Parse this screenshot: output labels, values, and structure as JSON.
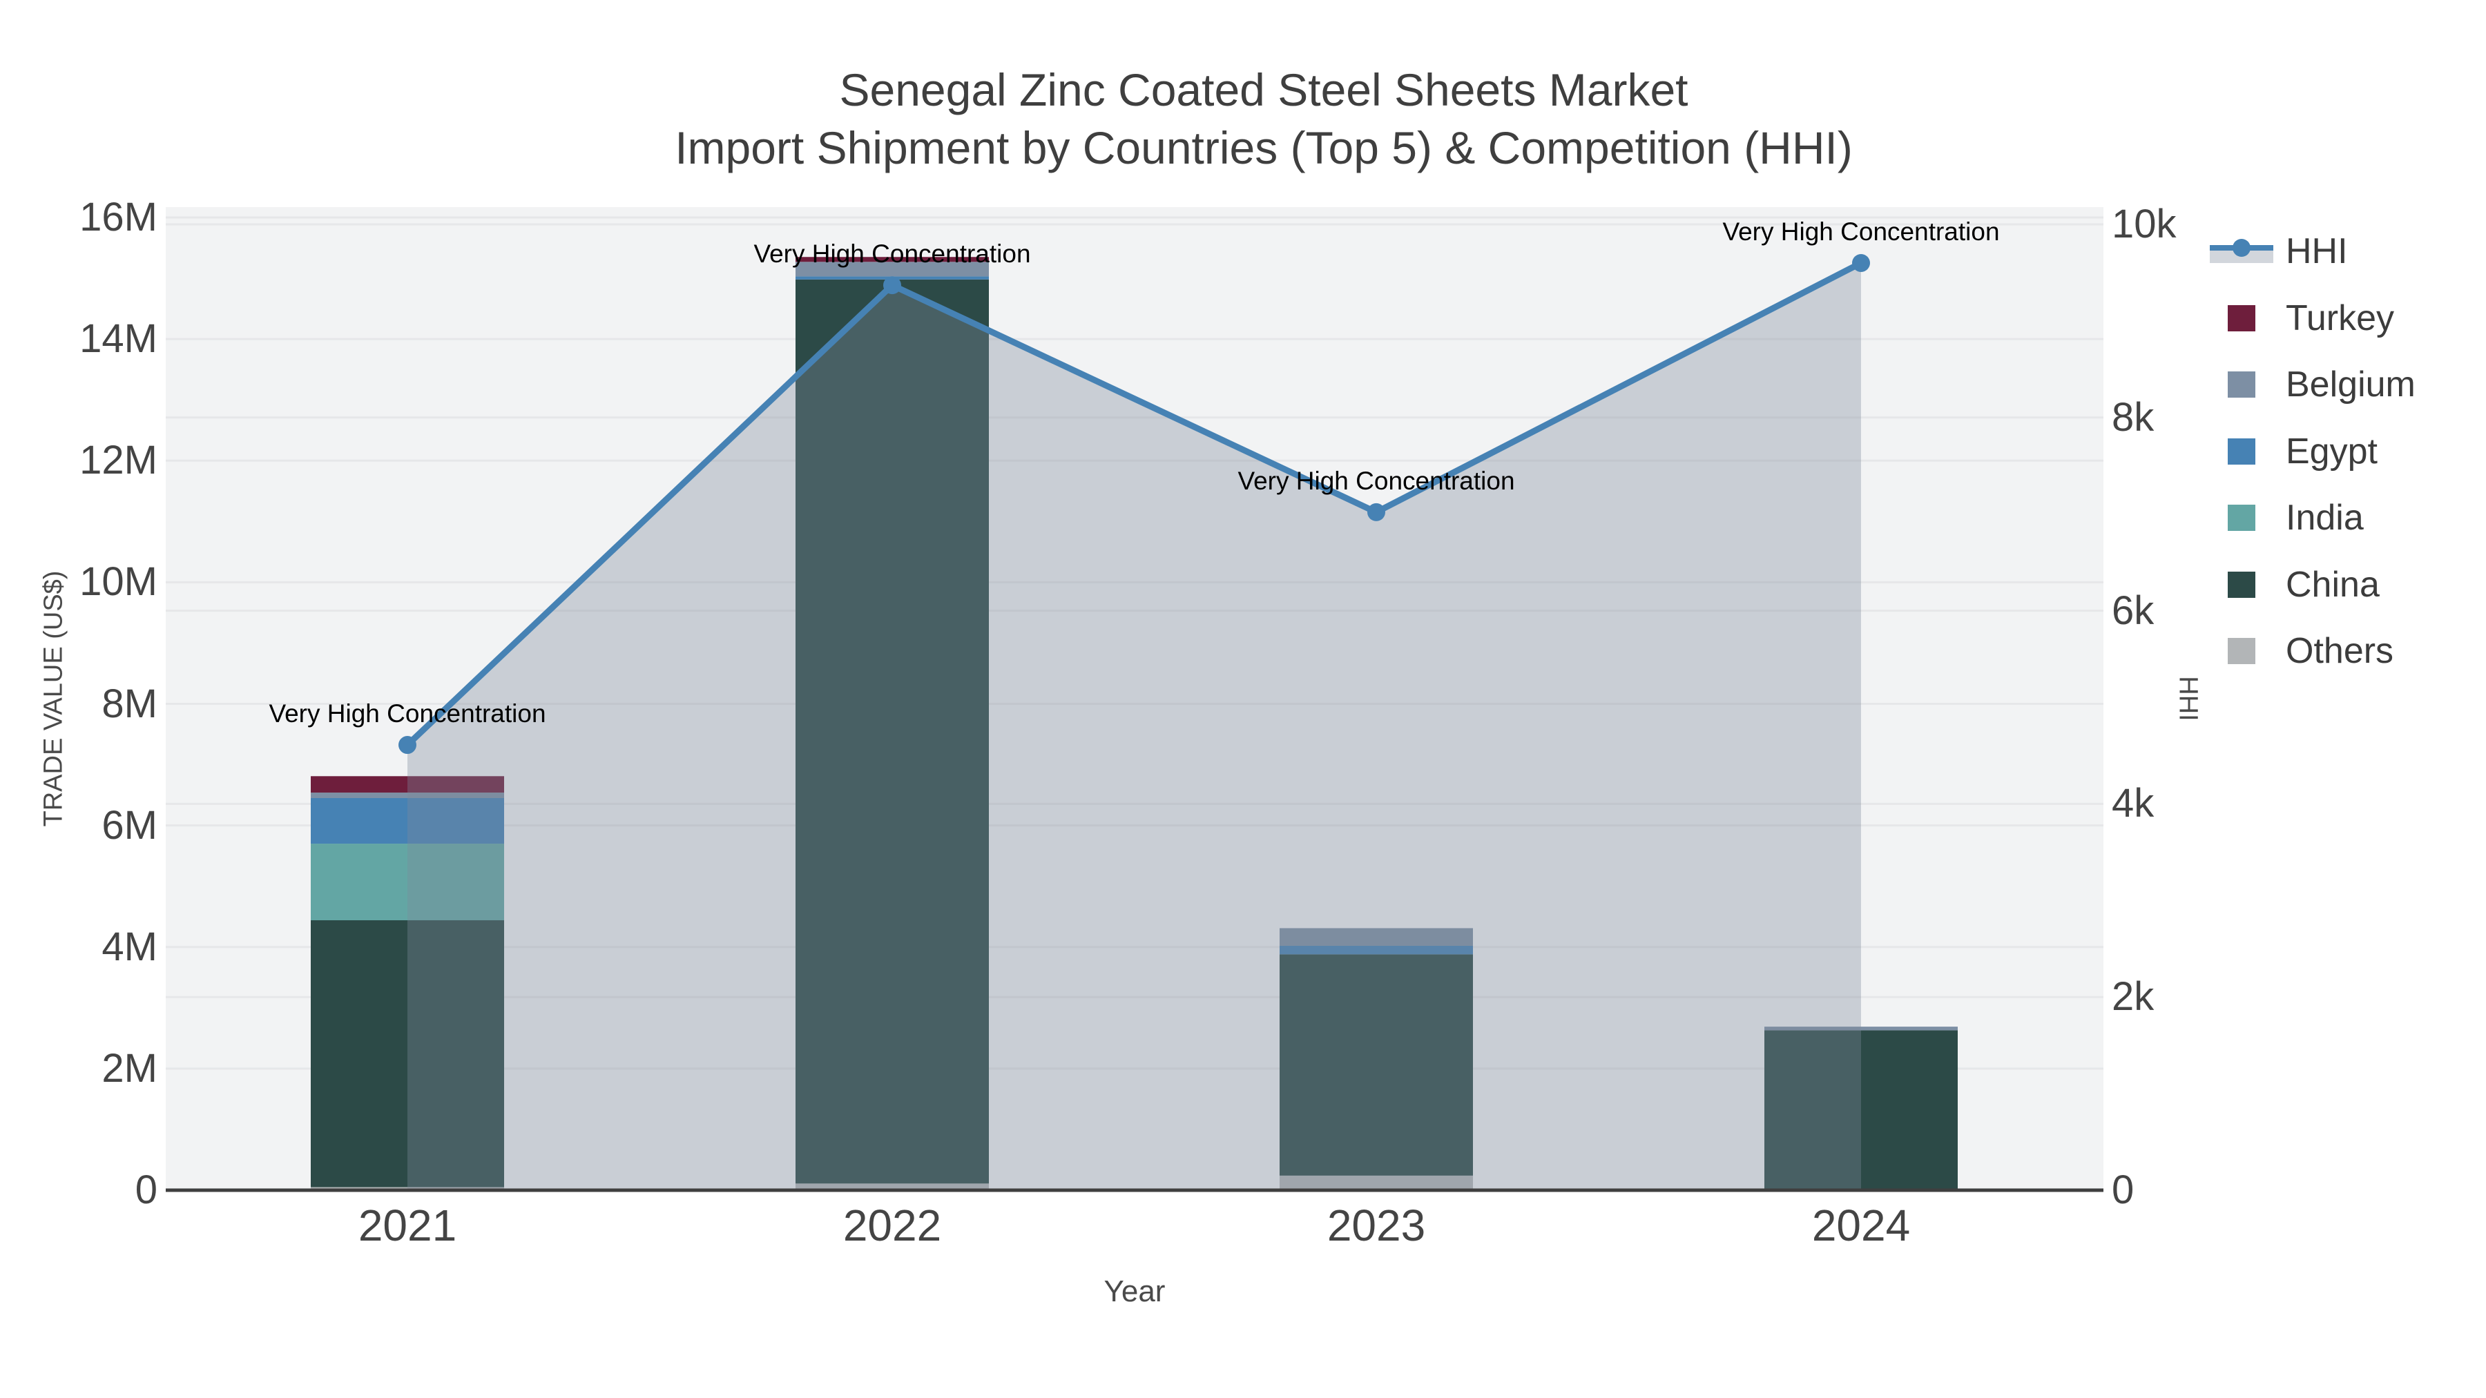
{
  "title": {
    "line1": "Senegal Zinc Coated Steel Sheets Market",
    "line2": "Import Shipment by Countries (Top 5) & Competition (HHI)"
  },
  "axes": {
    "x": {
      "label": "Year",
      "categories": [
        "2021",
        "2022",
        "2023",
        "2024"
      ]
    },
    "left": {
      "label": "TRADE VALUE (US$)",
      "ticks": [
        "0",
        "2M",
        "4M",
        "6M",
        "8M",
        "10M",
        "12M",
        "14M",
        "16M"
      ],
      "range": [
        0,
        16000000
      ]
    },
    "right": {
      "label": "HHI",
      "ticks": [
        "0",
        "2k",
        "4k",
        "6k",
        "8k",
        "10k"
      ],
      "range": [
        0,
        10000
      ]
    }
  },
  "legend": {
    "items": [
      {
        "label": "HHI",
        "type": "line",
        "color": "#4682B4"
      },
      {
        "label": "Turkey",
        "type": "box",
        "color": "#6E1E3C"
      },
      {
        "label": "Belgium",
        "type": "box",
        "color": "#7D8FA4"
      },
      {
        "label": "Egypt",
        "type": "box",
        "color": "#4682B4"
      },
      {
        "label": "India",
        "type": "box",
        "color": "#63A6A4"
      },
      {
        "label": "China",
        "type": "box",
        "color": "#2C4A47"
      },
      {
        "label": "Others",
        "type": "box",
        "color": "#B2B5B7"
      }
    ]
  },
  "colors": {
    "plot_background": "#F2F3F4",
    "gridline": "#E6E7E9",
    "axis_line": "#3F3F3F",
    "hhi_line": "#4682B4",
    "hhi_area_fill": "rgba(125,137,155,0.35)",
    "tick_text": "#444444",
    "title_text": "#3F3F3F"
  },
  "chart_data": {
    "type": "bar",
    "subtype": "stacked-bars-with-line-overlay",
    "title": "Senegal Zinc Coated Steel Sheets Market — Import Shipment by Countries (Top 5) & Competition (HHI)",
    "categories": [
      "2021",
      "2022",
      "2023",
      "2024"
    ],
    "xlabel": "Year",
    "ylabel": "TRADE VALUE (US$)",
    "y2label": "HHI",
    "ylim": [
      0,
      16000000
    ],
    "y2lim": [
      0,
      10000
    ],
    "grid": true,
    "legend_position": "right",
    "bar_series": [
      {
        "name": "Others",
        "color": "#B2B5B7",
        "values": [
          50000,
          110000,
          240000,
          0
        ]
      },
      {
        "name": "China",
        "color": "#2C4A47",
        "values": [
          4390000,
          14870000,
          3640000,
          2630000
        ]
      },
      {
        "name": "India",
        "color": "#63A6A4",
        "values": [
          1260000,
          0,
          0,
          0
        ]
      },
      {
        "name": "Egypt",
        "color": "#4682B4",
        "values": [
          750000,
          50000,
          140000,
          0
        ]
      },
      {
        "name": "Belgium",
        "color": "#7D8FA4",
        "values": [
          90000,
          240000,
          290000,
          60000
        ]
      },
      {
        "name": "Turkey",
        "color": "#6E1E3C",
        "values": [
          270000,
          80000,
          0,
          0
        ]
      }
    ],
    "line_series": {
      "name": "HHI",
      "axis": "right",
      "color": "#4682B4",
      "fill": "rgba(125,137,155,0.35)",
      "values": [
        4610,
        9370,
        7020,
        9600
      ],
      "point_annotations": [
        "Very High Concentration",
        "Very High Concentration",
        "Very High Concentration",
        "Very High Concentration"
      ]
    }
  }
}
